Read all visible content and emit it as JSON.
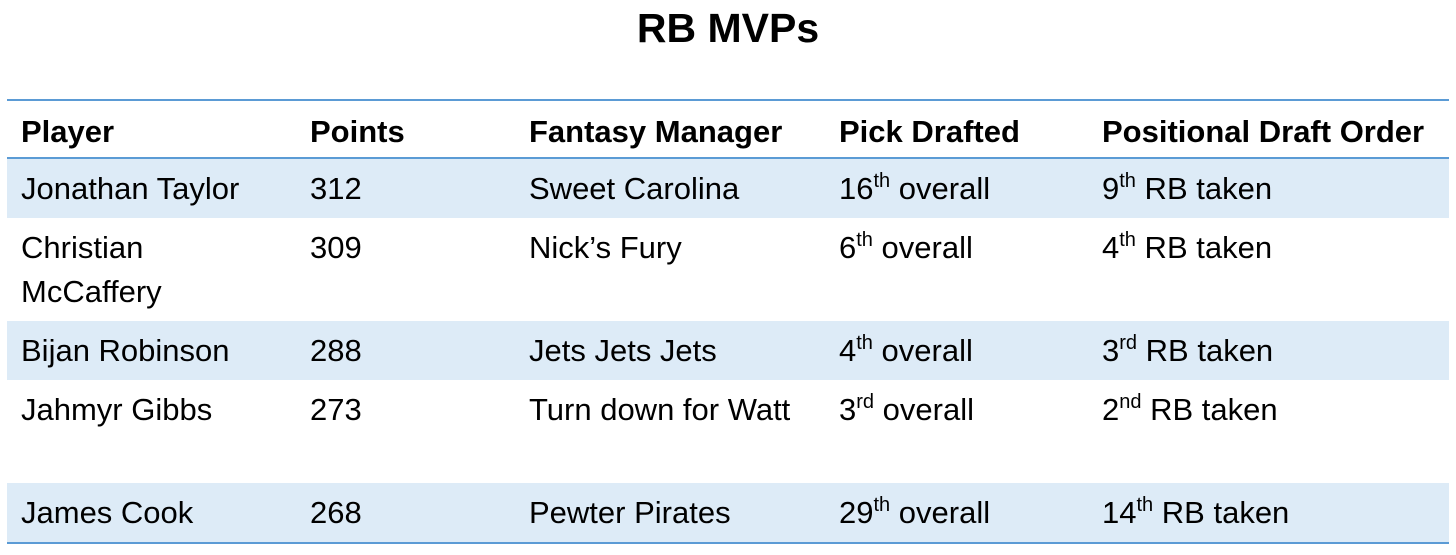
{
  "title": "RB MVPs",
  "headers": [
    "Player",
    "Points",
    "Fantasy Manager",
    "Pick Drafted",
    "Positional Draft Order"
  ],
  "rows": [
    {
      "player": "Jonathan Taylor",
      "points": "312",
      "manager": "Sweet Carolina",
      "pick_num": "16",
      "pick_suffix": "th",
      "pick_text": " overall",
      "pos_num": "9",
      "pos_suffix": "th",
      "pos_text": " RB taken"
    },
    {
      "player": "Christian McCaffery",
      "points": "309",
      "manager": "Nick’s Fury",
      "pick_num": "6",
      "pick_suffix": "th",
      "pick_text": " overall",
      "pos_num": "4",
      "pos_suffix": "th",
      "pos_text": " RB taken"
    },
    {
      "player": "Bijan Robinson",
      "points": "288",
      "manager": "Jets Jets Jets",
      "pick_num": "4",
      "pick_suffix": "th",
      "pick_text": " overall",
      "pos_num": "3",
      "pos_suffix": "rd",
      "pos_text": " RB taken"
    },
    {
      "player": "Jahmyr Gibbs",
      "points": "273",
      "manager": "Turn down for Watt",
      "pick_num": "3",
      "pick_suffix": "rd",
      "pick_text": " overall",
      "pos_num": "2",
      "pos_suffix": "nd",
      "pos_text": " RB taken"
    },
    {
      "player": "James Cook",
      "points": "268",
      "manager": "Pewter Pirates",
      "pick_num": "29",
      "pick_suffix": "th",
      "pick_text": " overall",
      "pos_num": "14",
      "pos_suffix": "th",
      "pos_text": " RB taken"
    }
  ]
}
